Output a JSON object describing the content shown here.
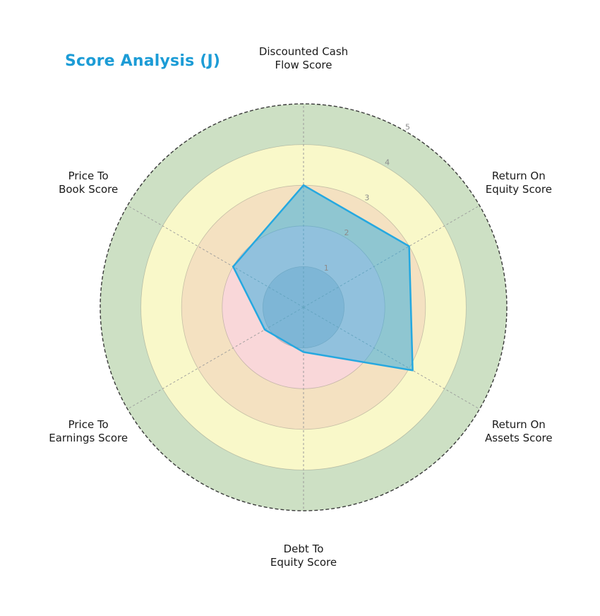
{
  "chart_data": {
    "type": "radar",
    "title": "Score Analysis (J)",
    "title_color": "#1c9cd6",
    "categories": [
      "Discounted Cash\nFlow Score",
      "Return On\nEquity Score",
      "Return On\nAssets Score",
      "Debt To\nEquity Score",
      "Price To\nEarnings Score",
      "Price To\nBook Score"
    ],
    "values": [
      3.0,
      3.0,
      3.1,
      1.1,
      1.1,
      2.0
    ],
    "rlim": [
      0,
      5
    ],
    "rticks": [
      1,
      2,
      3,
      4,
      5
    ],
    "tick_angle_deg": 60,
    "start_angle_deg": 90,
    "direction": "clockwise",
    "grid": true,
    "legend": "none",
    "rings": [
      {
        "to": 5,
        "color": "#cde0c4"
      },
      {
        "to": 4,
        "color": "#f9f8c9"
      },
      {
        "to": 3,
        "color": "#f4e1c1"
      },
      {
        "to": 2,
        "color": "#f9d7d9"
      },
      {
        "to": 1,
        "color": "rgba(95,125,160,0.25)"
      }
    ],
    "polygon": {
      "stroke": "#25a8e0",
      "fill": "rgba(41,171,226,0.5)"
    },
    "axis_line_color": "#9a9a9a",
    "outer_circle_color": "#3a3a3a",
    "tick_label_color": "#8c8c8c",
    "axis_label_color": "#1a1a1a"
  }
}
